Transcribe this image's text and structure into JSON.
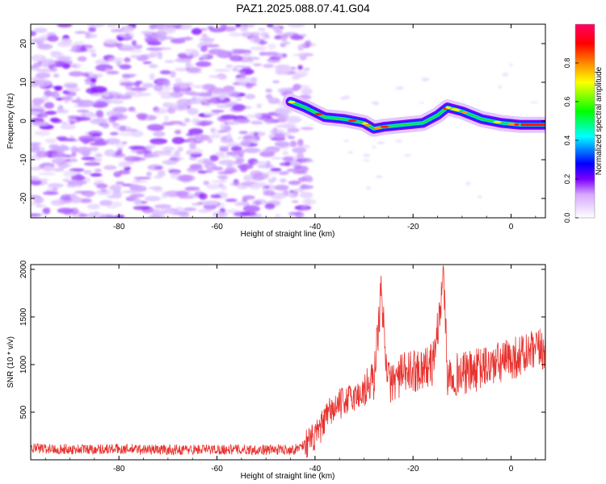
{
  "title": "PAZ1.2025.088.07.41.G04",
  "chart_data": [
    {
      "type": "heatmap",
      "xlabel": "Height of straight line (km)",
      "ylabel": "Frequency (Hz)",
      "xlim": [
        -98,
        7
      ],
      "ylim": [
        -25,
        25
      ],
      "x_ticks": [
        -80,
        -60,
        -40,
        -20,
        0
      ],
      "y_ticks": [
        -20,
        -10,
        0,
        10,
        20
      ],
      "colorbar": {
        "label": "Normalized spectral amplitude",
        "range": [
          0,
          1
        ],
        "ticks": [
          0.0,
          0.2,
          0.4,
          0.6,
          0.8
        ]
      },
      "noise_region_x": [
        -98,
        -41
      ],
      "signal_track": {
        "x": [
          -45,
          -42,
          -38,
          -34,
          -30,
          -28,
          -26,
          -22,
          -18,
          -15,
          -13,
          -10,
          -6,
          -2,
          2,
          7
        ],
        "frequency": [
          5,
          3.5,
          1,
          0.5,
          -0.5,
          -2,
          -1.5,
          -1,
          -0.5,
          1.5,
          3.5,
          2.5,
          0.5,
          -0.5,
          -1,
          -1
        ],
        "peak_amplitude": 0.95
      }
    },
    {
      "type": "line",
      "xlabel": "Height of straight line (km)",
      "ylabel": "SNR (10 * v/v)",
      "xlim": [
        -98,
        7
      ],
      "ylim": [
        0,
        2050
      ],
      "x_ticks": [
        -80,
        -60,
        -40,
        -20,
        0
      ],
      "y_ticks": [
        500,
        1000,
        1500,
        2000
      ],
      "color": "#e8322e",
      "series": [
        {
          "x": [
            -98,
            -90,
            -80,
            -70,
            -60,
            -50,
            -44,
            -40,
            -37,
            -34,
            -31,
            -28,
            -26.5,
            -25,
            -22,
            -19,
            -16,
            -14.5,
            -13.8,
            -13,
            -11,
            -8,
            -5,
            -2,
            1,
            4,
            7
          ],
          "values": [
            120,
            110,
            115,
            105,
            110,
            105,
            110,
            230,
            500,
            620,
            680,
            830,
            1750,
            800,
            900,
            950,
            1000,
            1550,
            2020,
            900,
            900,
            920,
            980,
            1020,
            1080,
            1120,
            1170
          ]
        }
      ]
    }
  ]
}
